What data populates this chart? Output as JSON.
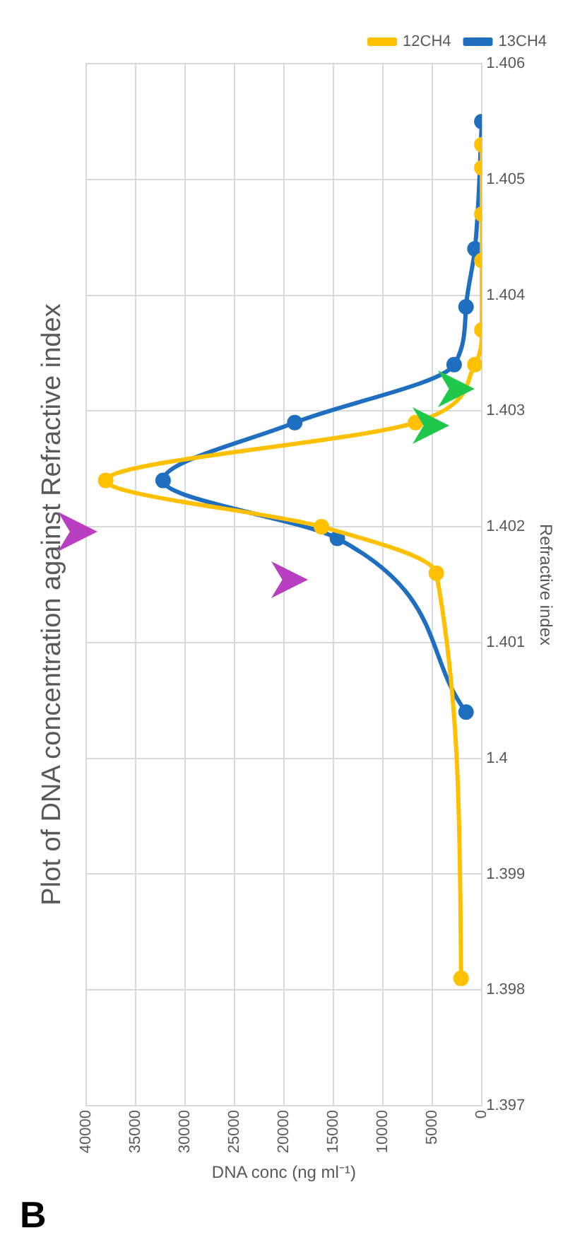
{
  "chart_data": {
    "type": "line",
    "title": "Plot of DNA concentration against Refractive index",
    "xlabel": "DNA conc (ng ml⁻¹)",
    "ylabel": "Refractive index",
    "series": [
      {
        "name": "13CH4",
        "color": "#1f6fc0",
        "x": [
          1600,
          14600,
          32200,
          18900,
          2800,
          1600,
          700,
          0
        ],
        "values": [
          1.4004,
          1.4019,
          1.4024,
          1.4029,
          1.4034,
          1.4039,
          1.4044,
          1.4055
        ]
      },
      {
        "name": "12CH4",
        "color": "#ffc000",
        "x": [
          2100,
          4600,
          16200,
          38000,
          6700,
          700,
          0,
          0,
          0,
          0,
          0
        ],
        "values": [
          1.3981,
          1.4016,
          1.402,
          1.4024,
          1.4029,
          1.4034,
          1.4037,
          1.4043,
          1.4047,
          1.4051,
          1.4053
        ]
      }
    ],
    "xlim": [
      40000,
      0
    ],
    "xticks": [
      40000,
      35000,
      30000,
      25000,
      20000,
      15000,
      10000,
      5000,
      0
    ],
    "ylim": [
      1.397,
      1.406
    ],
    "yticks": [
      1.397,
      1.398,
      1.399,
      1.4,
      1.401,
      1.402,
      1.403,
      1.404,
      1.405,
      1.406
    ],
    "grid": true,
    "legend": "top right",
    "marker": "circle",
    "line_style": "solid",
    "annotations": [
      "B"
    ]
  }
}
